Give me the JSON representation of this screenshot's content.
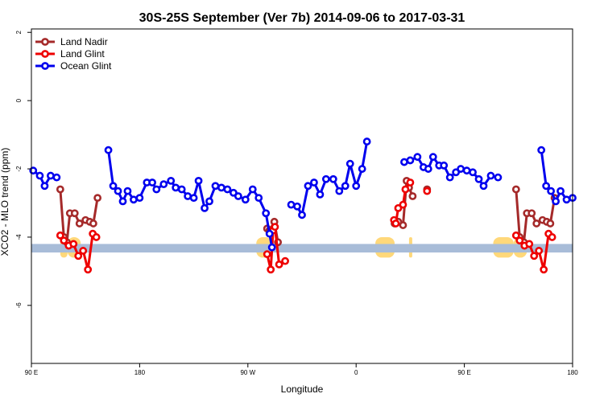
{
  "chart_data": {
    "type": "line",
    "title": "30S-25S September (Ver 7b)   2014-09-06 to 2017-03-31",
    "xlabel": "Longitude",
    "ylabel": "XCO2 - MLO trend (ppm)",
    "xlim": [
      90,
      540
    ],
    "ylim": [
      -7.7,
      2.1
    ],
    "x_ticks": [
      {
        "value": 90,
        "label": "90 E"
      },
      {
        "value": 180,
        "label": "180"
      },
      {
        "value": 270,
        "label": "90 W"
      },
      {
        "value": 360,
        "label": "0"
      },
      {
        "value": 450,
        "label": "90 E"
      },
      {
        "value": 540,
        "label": "180"
      }
    ],
    "y_ticks": [
      {
        "value": 2,
        "label": "2"
      },
      {
        "value": 0,
        "label": "0"
      },
      {
        "value": -2,
        "label": "-2"
      },
      {
        "value": -4,
        "label": "-4"
      },
      {
        "value": -6,
        "label": "-6"
      }
    ],
    "grid": false,
    "legend_position": "top-left",
    "band": {
      "y_from": -4.2,
      "y_to": -4.45,
      "color": "#a8bcd8"
    },
    "land_zones": [
      {
        "x_from": 114,
        "x_to": 120,
        "color": "#ffd87a"
      },
      {
        "x_from": 120,
        "x_to": 131,
        "color": "#ffd87a"
      },
      {
        "x_from": 277,
        "x_to": 290,
        "color": "#ffd87a"
      },
      {
        "x_from": 376,
        "x_to": 392,
        "color": "#ffd87a"
      },
      {
        "x_from": 404,
        "x_to": 405,
        "color": "#ffd87a"
      },
      {
        "x_from": 474,
        "x_to": 491,
        "color": "#ffd87a"
      },
      {
        "x_from": 491,
        "x_to": 502,
        "color": "#ffd87a"
      }
    ],
    "series": [
      {
        "name": "Land Nadir",
        "color": "#a52a2a",
        "segments": [
          [
            [
              114,
              -2.6
            ],
            [
              117,
              -4.0
            ],
            [
              119.5,
              -4.15
            ],
            [
              122,
              -3.3
            ],
            [
              126,
              -3.3
            ],
            [
              130,
              -3.6
            ],
            [
              135,
              -3.5
            ],
            [
              138.5,
              -3.55
            ],
            [
              141.5,
              -3.6
            ],
            [
              145,
              -2.85
            ]
          ],
          [
            [
              286,
              -3.75
            ],
            [
              288,
              -3.8
            ],
            [
              292,
              -3.55
            ],
            [
              295,
              -4.15
            ]
          ],
          [
            [
              392,
              -3.6
            ],
            [
              395,
              -3.55
            ],
            [
              399,
              -3.65
            ],
            [
              402,
              -2.35
            ],
            [
              404,
              -2.55
            ],
            [
              407,
              -2.8
            ]
          ],
          [
            [
              419,
              -2.6
            ]
          ],
          [
            [
              493,
              -2.6
            ],
            [
              496,
              -4.0
            ],
            [
              499.5,
              -4.15
            ],
            [
              502,
              -3.3
            ],
            [
              506,
              -3.3
            ],
            [
              510,
              -3.6
            ],
            [
              515,
              -3.5
            ],
            [
              518.5,
              -3.55
            ],
            [
              521.5,
              -3.6
            ],
            [
              525,
              -2.85
            ]
          ]
        ]
      },
      {
        "name": "Land Glint",
        "color": "#ee0000",
        "segments": [
          [
            [
              114,
              -3.95
            ],
            [
              117,
              -4.1
            ],
            [
              121,
              -4.25
            ],
            [
              125,
              -4.2
            ],
            [
              129,
              -4.55
            ],
            [
              133,
              -4.4
            ],
            [
              137,
              -4.95
            ],
            [
              141,
              -3.9
            ],
            [
              144,
              -4.0
            ]
          ],
          [
            [
              286,
              -4.5
            ],
            [
              289,
              -4.95
            ],
            [
              291,
              -3.8
            ],
            [
              292.5,
              -3.7
            ],
            [
              296,
              -4.8
            ],
            [
              301,
              -4.7
            ]
          ],
          [
            [
              391.5,
              -3.5
            ],
            [
              393,
              -3.6
            ],
            [
              395,
              -3.15
            ],
            [
              399,
              -3.05
            ],
            [
              401,
              -2.6
            ],
            [
              405,
              -2.4
            ]
          ],
          [
            [
              419,
              -2.65
            ]
          ],
          [
            [
              493,
              -3.95
            ],
            [
              496,
              -4.1
            ],
            [
              500,
              -4.25
            ],
            [
              504,
              -4.2
            ],
            [
              508,
              -4.55
            ],
            [
              512,
              -4.4
            ],
            [
              516,
              -4.95
            ],
            [
              520,
              -3.9
            ],
            [
              523,
              -4.0
            ]
          ]
        ]
      },
      {
        "name": "Ocean Glint",
        "color": "#0000ee",
        "segments": [
          [
            [
              91.5,
              -2.05
            ],
            [
              97,
              -2.2
            ],
            [
              101,
              -2.5
            ],
            [
              106,
              -2.2
            ],
            [
              111,
              -2.25
            ]
          ],
          [
            [
              154,
              -1.45
            ],
            [
              158,
              -2.5
            ],
            [
              162,
              -2.65
            ],
            [
              166,
              -2.95
            ],
            [
              170,
              -2.65
            ],
            [
              175,
              -2.9
            ],
            [
              180,
              -2.85
            ],
            [
              186,
              -2.4
            ],
            [
              190.5,
              -2.4
            ],
            [
              194,
              -2.6
            ],
            [
              200,
              -2.45
            ],
            [
              206,
              -2.35
            ],
            [
              210,
              -2.55
            ],
            [
              215,
              -2.6
            ],
            [
              220,
              -2.8
            ],
            [
              225,
              -2.85
            ],
            [
              229,
              -2.35
            ],
            [
              234,
              -3.15
            ],
            [
              238,
              -2.95
            ],
            [
              243,
              -2.5
            ],
            [
              248,
              -2.55
            ],
            [
              253,
              -2.6
            ],
            [
              258,
              -2.7
            ],
            [
              262,
              -2.8
            ],
            [
              268,
              -2.9
            ],
            [
              274,
              -2.6
            ],
            [
              279,
              -2.85
            ],
            [
              285,
              -3.3
            ],
            [
              288,
              -3.9
            ],
            [
              290,
              -4.3
            ]
          ],
          [
            [
              306,
              -3.05
            ],
            [
              311,
              -3.1
            ],
            [
              315,
              -3.35
            ],
            [
              320,
              -2.5
            ],
            [
              325,
              -2.4
            ],
            [
              330,
              -2.75
            ],
            [
              335,
              -2.3
            ],
            [
              341,
              -2.3
            ],
            [
              346,
              -2.65
            ],
            [
              351,
              -2.5
            ],
            [
              355,
              -1.85
            ],
            [
              360,
              -2.5
            ],
            [
              365,
              -2.0
            ],
            [
              369,
              -1.2
            ]
          ],
          [
            [
              400,
              -1.8
            ],
            [
              405,
              -1.75
            ],
            [
              411,
              -1.65
            ],
            [
              416,
              -1.95
            ],
            [
              420,
              -2.0
            ],
            [
              424,
              -1.65
            ],
            [
              429,
              -1.9
            ],
            [
              433,
              -1.9
            ],
            [
              438,
              -2.25
            ],
            [
              443,
              -2.1
            ],
            [
              447,
              -2.0
            ],
            [
              452,
              -2.05
            ],
            [
              457,
              -2.1
            ],
            [
              462,
              -2.3
            ],
            [
              466,
              -2.5
            ],
            [
              472,
              -2.2
            ],
            [
              478,
              -2.25
            ]
          ],
          [
            [
              514,
              -1.45
            ],
            [
              518,
              -2.5
            ],
            [
              522,
              -2.65
            ],
            [
              526,
              -2.95
            ],
            [
              530,
              -2.65
            ],
            [
              535,
              -2.9
            ],
            [
              540,
              -2.85
            ]
          ]
        ]
      }
    ]
  }
}
